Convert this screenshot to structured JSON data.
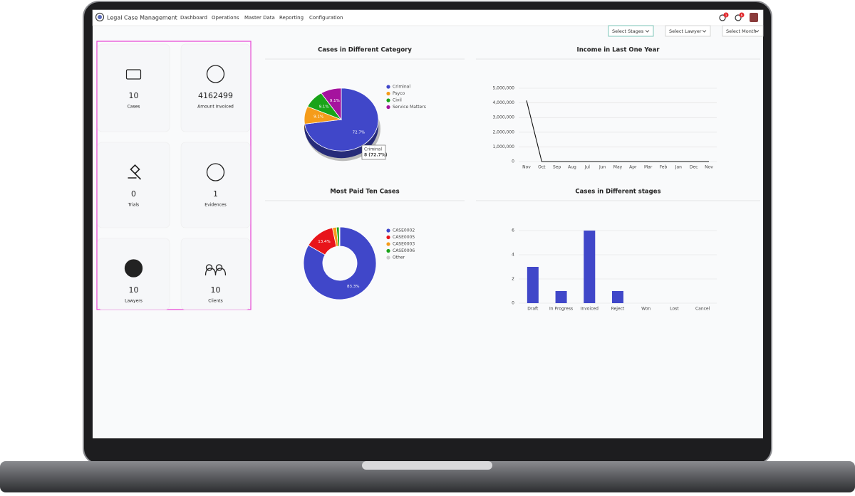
{
  "navbar": {
    "brand": "Legal Case Management",
    "menu": [
      "Dashboard",
      "Operations",
      "Master Data",
      "Reporting",
      "Configuration"
    ],
    "badges": [
      1,
      6
    ]
  },
  "filters": [
    "Select Stages",
    "Select Lawyer",
    "Select Month"
  ],
  "cards": [
    {
      "value": 10,
      "label": "Cases"
    },
    {
      "value": 4162499,
      "label": "Amount Invoiced"
    },
    {
      "value": 0,
      "label": "Trials"
    },
    {
      "value": 1,
      "label": "Evidences"
    },
    {
      "value": 10,
      "label": "Lawyers"
    },
    {
      "value": 10,
      "label": "Clients"
    }
  ],
  "chart_data": [
    {
      "type": "pie",
      "title": "Cases in Different Category",
      "categories": [
        "Criminal",
        "Psyco",
        "Civil",
        "Service Matters"
      ],
      "values": [
        72.7,
        9.1,
        9.1,
        9.1
      ],
      "value_labels": [
        "72.7%",
        "9.1%",
        "9.1%",
        "9.1%"
      ],
      "colors": [
        "#4047c9",
        "#f59c1a",
        "#19a319",
        "#a5139e"
      ],
      "tooltip": {
        "title": "Criminal",
        "text": "8 (72.7%)"
      }
    },
    {
      "type": "line",
      "title": "Income in Last One Year",
      "x": [
        "Nov",
        "Oct",
        "Sep",
        "Aug",
        "Jul",
        "Jun",
        "May",
        "Apr",
        "Mar",
        "Feb",
        "Jan",
        "Dec",
        "Nov"
      ],
      "series": [
        {
          "color": "#111111",
          "values": [
            4162499,
            0,
            0,
            0,
            0,
            0,
            0,
            0,
            0,
            0,
            0,
            0,
            0
          ]
        }
      ],
      "ylim": [
        0,
        5000000
      ],
      "yticks": [
        0,
        {
          "value": 1000000,
          "label": "1,000,000"
        },
        {
          "value": 2000000,
          "label": "2,000,000"
        },
        {
          "value": 3000000,
          "label": "3,000,000"
        },
        {
          "value": 4000000,
          "label": "4,000,000"
        },
        {
          "value": 5000000,
          "label": "5,000,000"
        }
      ],
      "grid": true
    },
    {
      "type": "donut",
      "title": "Most Paid Ten Cases",
      "categories": [
        "CASE0002",
        "CASE0005",
        "CASE0003",
        "CASE0006",
        "Other"
      ],
      "values": [
        83.3,
        13.4,
        1.8,
        1.2,
        0.3
      ],
      "value_labels": [
        "83.3%",
        "13.4%",
        null,
        null,
        null
      ],
      "colors": [
        "#4047c9",
        "#e8141a",
        "#f59c1a",
        "#19a319",
        "#cccccc"
      ]
    },
    {
      "type": "bar",
      "title": "Cases in Different stages",
      "categories": [
        "Draft",
        "In Progress",
        "Invoiced",
        "Reject",
        "Won",
        "Lost",
        "Cancel"
      ],
      "values": [
        3,
        1,
        6,
        1,
        0,
        0,
        0
      ],
      "color": "#4047c9",
      "ylim": [
        0,
        6
      ],
      "yticks": [
        0,
        2,
        4,
        6
      ],
      "grid": true
    }
  ]
}
